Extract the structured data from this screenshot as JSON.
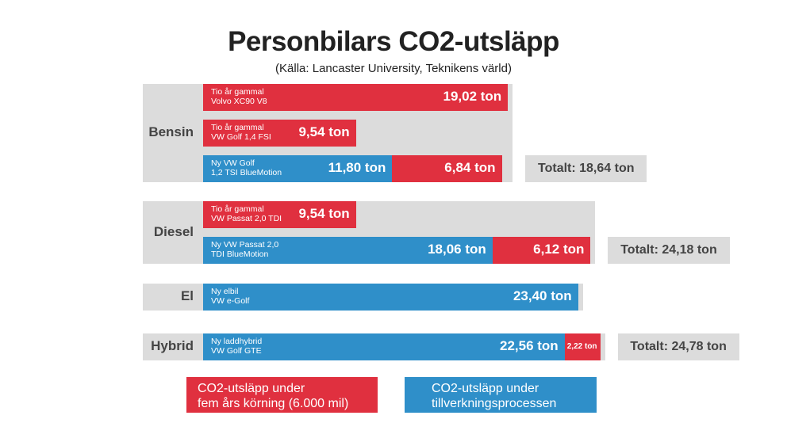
{
  "chart_data": {
    "type": "bar",
    "title": "Personbilars CO2-utsläpp",
    "subtitle": "(Källa: Lancaster University, Teknikens värld)",
    "unit": "ton",
    "colors": {
      "drive": "#e0303f",
      "manufacture": "#2f8fc9",
      "group_bg": "#dcdcdc"
    },
    "groups": [
      {
        "name": "Bensin",
        "rows": [
          {
            "caption": [
              "Tio år gammal",
              "Volvo XC90 V8"
            ],
            "segments": [
              {
                "series": "drive",
                "value": 19.02,
                "label": "19,02 ton"
              }
            ]
          },
          {
            "caption": [
              "Tio år gammal",
              "VW Golf 1,4 FSI"
            ],
            "segments": [
              {
                "series": "drive",
                "value": 9.54,
                "label": "9,54 ton"
              }
            ]
          },
          {
            "caption": [
              "Ny VW Golf",
              "1,2 TSI BlueMotion"
            ],
            "segments": [
              {
                "series": "manufacture",
                "value": 11.8,
                "label": "11,80 ton"
              },
              {
                "series": "drive",
                "value": 6.84,
                "label": "6,84 ton"
              }
            ]
          }
        ],
        "total": "Totalt: 18,64 ton"
      },
      {
        "name": "Diesel",
        "rows": [
          {
            "caption": [
              "Tio år gammal",
              "VW Passat 2,0 TDI"
            ],
            "segments": [
              {
                "series": "drive",
                "value": 9.54,
                "label": "9,54 ton"
              }
            ]
          },
          {
            "caption": [
              "Ny VW Passat 2,0",
              "TDI BlueMotion"
            ],
            "segments": [
              {
                "series": "manufacture",
                "value": 18.06,
                "label": "18,06 ton"
              },
              {
                "series": "drive",
                "value": 6.12,
                "label": "6,12 ton"
              }
            ]
          }
        ],
        "total": "Totalt: 24,18 ton"
      },
      {
        "name": "El",
        "rows": [
          {
            "caption": [
              "Ny elbil",
              "VW e-Golf"
            ],
            "segments": [
              {
                "series": "manufacture",
                "value": 23.4,
                "label": "23,40 ton"
              }
            ]
          }
        ],
        "total": ""
      },
      {
        "name": "Hybrid",
        "rows": [
          {
            "caption": [
              "Ny laddhybrid",
              "VW Golf GTE"
            ],
            "segments": [
              {
                "series": "manufacture",
                "value": 22.56,
                "label": "22,56 ton"
              },
              {
                "series": "drive",
                "value": 2.22,
                "label": "2,22 ton"
              }
            ]
          }
        ],
        "total": "Totalt: 24,78 ton"
      }
    ],
    "legend": [
      {
        "series": "drive",
        "lines": [
          "CO2-utsläpp under",
          "fem års körning (6.000 mil)"
        ]
      },
      {
        "series": "manufacture",
        "lines": [
          "CO2-utsläpp under",
          "tillverkningsprocessen"
        ]
      }
    ]
  }
}
